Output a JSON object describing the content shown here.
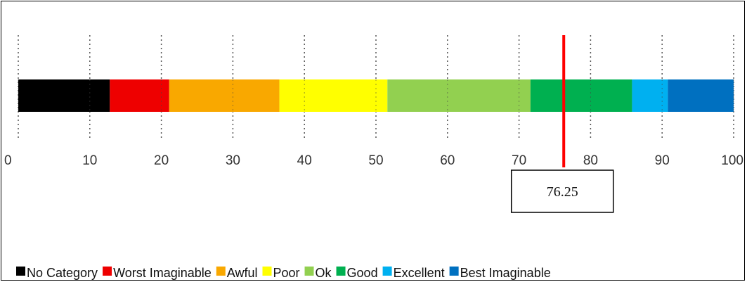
{
  "chart_data": {
    "type": "bar",
    "orientation": "horizontal-stacked",
    "axis": {
      "min": 0,
      "max": 100,
      "ticks": [
        "0",
        "10",
        "20",
        "30",
        "40",
        "50",
        "60",
        "70",
        "80",
        "90",
        "100"
      ]
    },
    "grid": "dotted-vertical",
    "legend_position": "bottom",
    "segments": [
      {
        "name": "No Category",
        "start": 0,
        "end": 12.8,
        "color": "#000000"
      },
      {
        "name": "Worst Imaginable",
        "start": 12.8,
        "end": 21.1,
        "color": "#ee0000"
      },
      {
        "name": "Awful",
        "start": 21.1,
        "end": 36.5,
        "color": "#f9a800"
      },
      {
        "name": "Poor",
        "start": 36.5,
        "end": 51.6,
        "color": "#ffff00"
      },
      {
        "name": "Ok",
        "start": 51.6,
        "end": 71.6,
        "color": "#92d050"
      },
      {
        "name": "Good",
        "start": 71.6,
        "end": 85.8,
        "color": "#00b050"
      },
      {
        "name": "Excellent",
        "start": 85.8,
        "end": 90.8,
        "color": "#00b0f0"
      },
      {
        "name": "Best Imaginable",
        "start": 90.8,
        "end": 100,
        "color": "#0070c0"
      }
    ],
    "marker": {
      "value": 76.25,
      "label": "76.25",
      "color": "#ff0000"
    }
  }
}
